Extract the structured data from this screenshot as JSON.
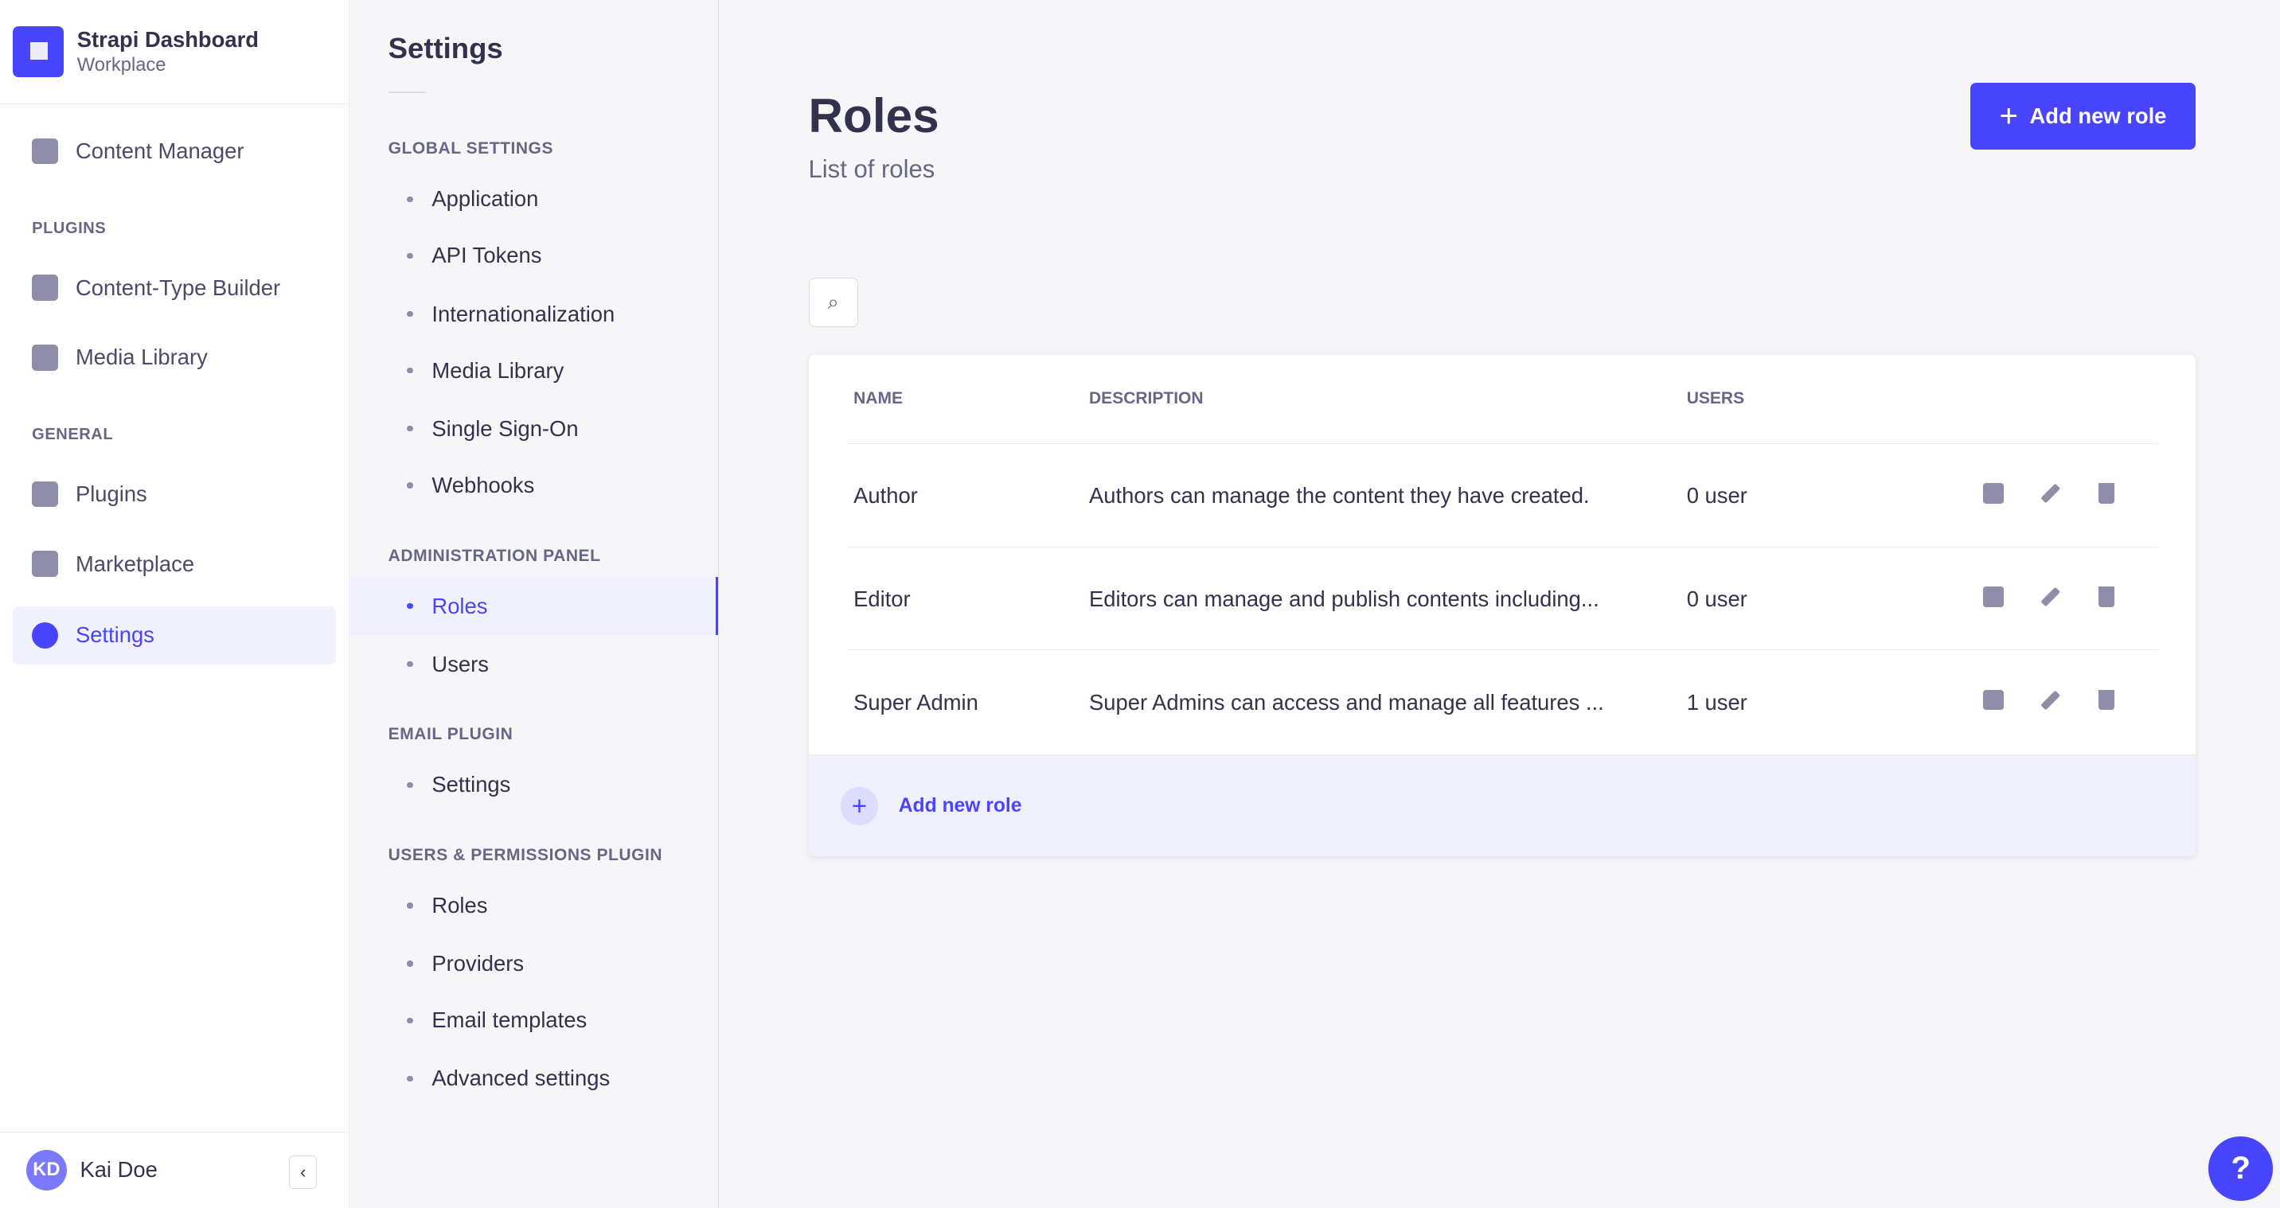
{
  "brand": {
    "title": "Strapi Dashboard",
    "subtitle": "Workplace",
    "color": "#4945ff"
  },
  "nav": {
    "content_manager": "Content Manager",
    "plugins_heading": "PLUGINS",
    "ctb": "Content-Type Builder",
    "media": "Media Library",
    "general_heading": "GENERAL",
    "plugins": "Plugins",
    "marketplace": "Marketplace",
    "settings": "Settings"
  },
  "user": {
    "initials": "KD",
    "name": "Kai Doe",
    "collapse": "‹"
  },
  "settings": {
    "title": "Settings",
    "global_heading": "GLOBAL SETTINGS",
    "global": [
      "Application",
      "API Tokens",
      "Internationalization",
      "Media Library",
      "Single Sign-On",
      "Webhooks"
    ],
    "admin_heading": "ADMINISTRATION PANEL",
    "admin": [
      "Roles",
      "Users"
    ],
    "email_heading": "EMAIL PLUGIN",
    "email": [
      "Settings"
    ],
    "up_heading": "USERS & PERMISSIONS PLUGIN",
    "up": [
      "Roles",
      "Providers",
      "Email templates",
      "Advanced settings"
    ]
  },
  "page": {
    "title": "Roles",
    "subtitle": "List of roles",
    "add_button": "Add new role",
    "plus": "+",
    "search_icon": "⌕"
  },
  "table": {
    "headers": [
      "NAME",
      "DESCRIPTION",
      "USERS"
    ],
    "rows": [
      {
        "name": "Author",
        "description": "Authors can manage the content they have created.",
        "users": "0 user"
      },
      {
        "name": "Editor",
        "description": "Editors can manage and publish contents including...",
        "users": "0 user"
      },
      {
        "name": "Super Admin",
        "description": "Super Admins can access and manage all features ...",
        "users": "1 user"
      }
    ],
    "footer": "Add new role"
  },
  "help": "?"
}
